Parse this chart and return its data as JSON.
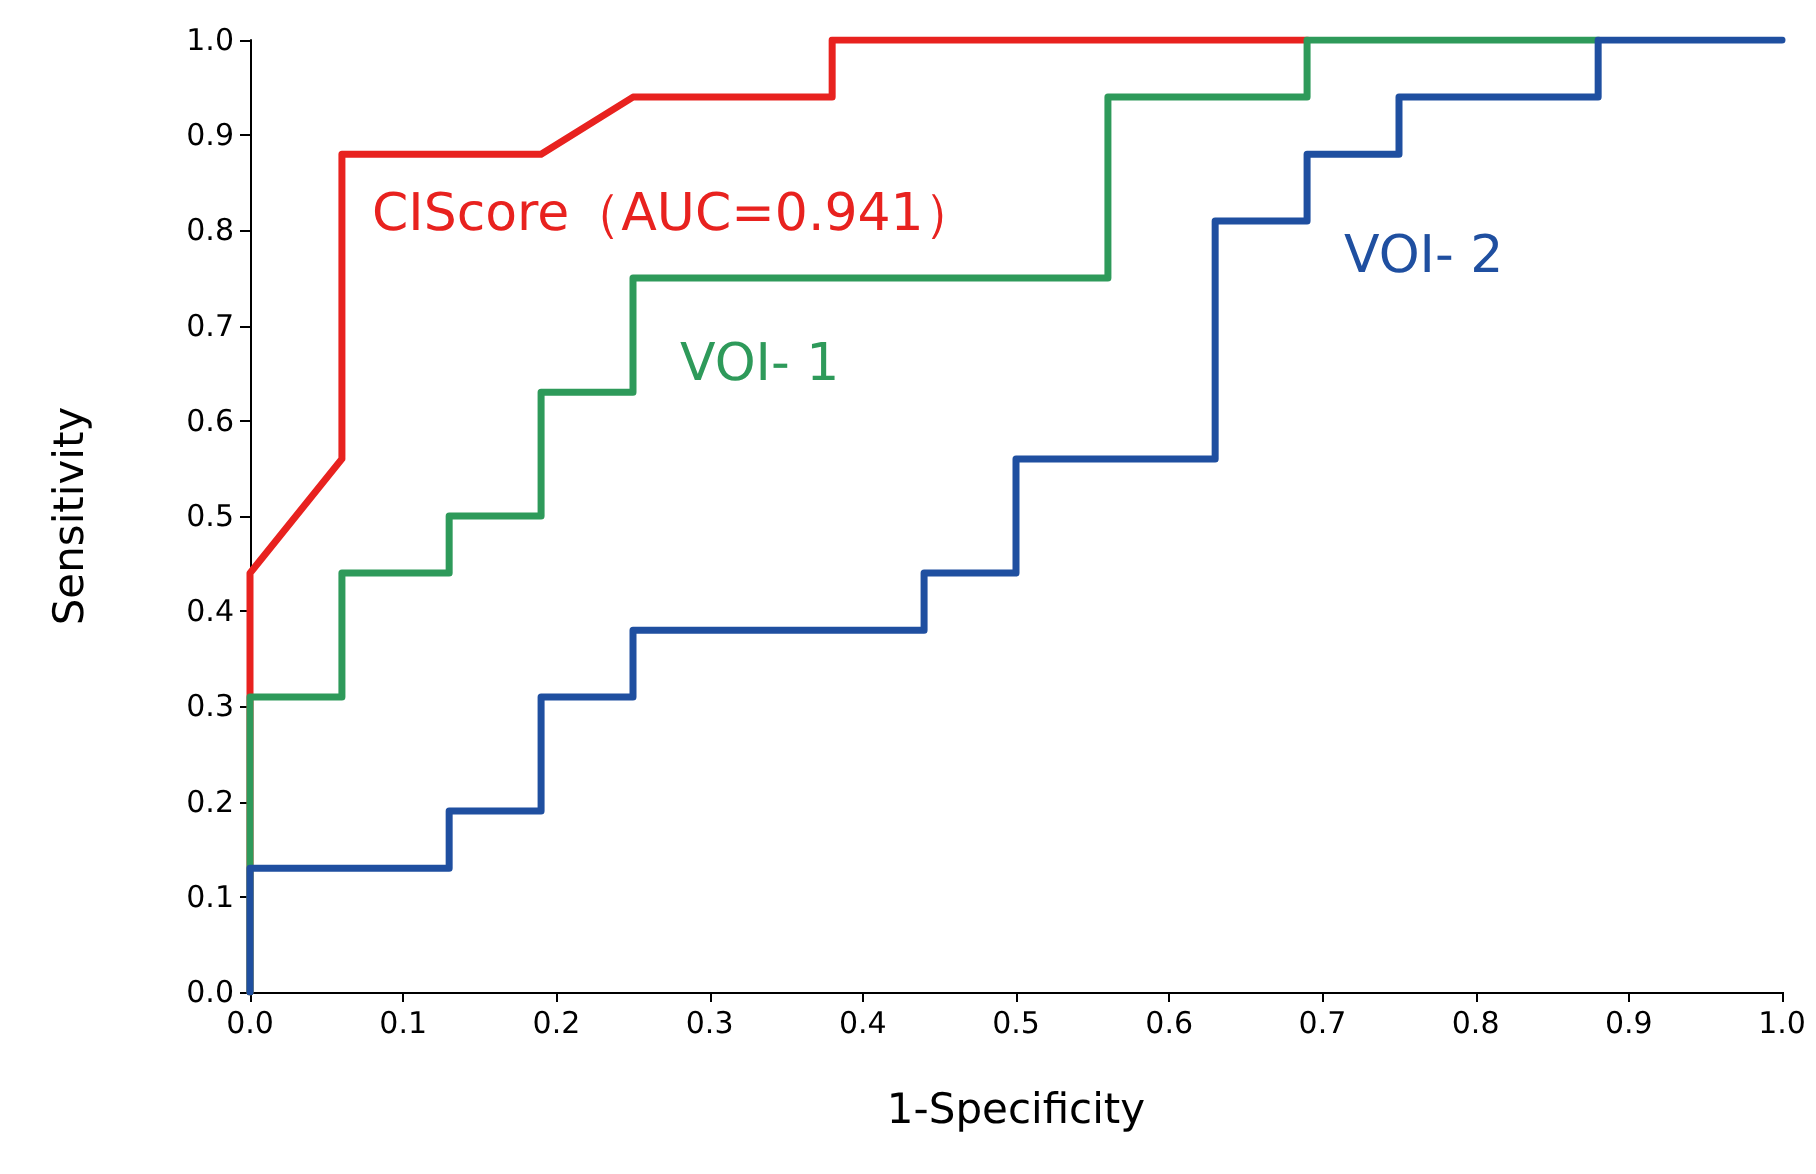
{
  "chart_data": {
    "type": "line",
    "xlabel": "1-Specificity",
    "ylabel": "Sensitivity",
    "xlim": [
      0,
      1
    ],
    "ylim": [
      0,
      1
    ],
    "xticks": [
      {
        "value": 0,
        "label": "0.0"
      },
      {
        "value": 0.1,
        "label": "0.1"
      },
      {
        "value": 0.2,
        "label": "0.2"
      },
      {
        "value": 0.3,
        "label": "0.3"
      },
      {
        "value": 0.4,
        "label": "0.4"
      },
      {
        "value": 0.5,
        "label": "0.5"
      },
      {
        "value": 0.6,
        "label": "0.6"
      },
      {
        "value": 0.7,
        "label": "0.7"
      },
      {
        "value": 0.8,
        "label": "0.8"
      },
      {
        "value": 0.9,
        "label": "0.9"
      },
      {
        "value": 1,
        "label": "1.0"
      }
    ],
    "yticks": [
      {
        "value": 0,
        "label": "0.0"
      },
      {
        "value": 0.1,
        "label": "0.1"
      },
      {
        "value": 0.2,
        "label": "0.2"
      },
      {
        "value": 0.3,
        "label": "0.3"
      },
      {
        "value": 0.4,
        "label": "0.4"
      },
      {
        "value": 0.5,
        "label": "0.5"
      },
      {
        "value": 0.6,
        "label": "0.6"
      },
      {
        "value": 0.7,
        "label": "0.7"
      },
      {
        "value": 0.8,
        "label": "0.8"
      },
      {
        "value": 0.9,
        "label": "0.9"
      },
      {
        "value": 1,
        "label": "1.0"
      }
    ],
    "grid": false,
    "marker": "none",
    "line_style": "solid",
    "series": [
      {
        "color": "#e8221f",
        "x": [
          0,
          0,
          0.06,
          0.06,
          0.19,
          0.25,
          0.38,
          0.38,
          0.69
        ],
        "values": [
          0,
          0.44,
          0.56,
          0.88,
          0.88,
          0.94,
          0.94,
          1,
          1
        ]
      },
      {
        "color": "#2e9a5a",
        "x": [
          0,
          0,
          0.06,
          0.06,
          0.13,
          0.13,
          0.19,
          0.19,
          0.25,
          0.25,
          0.56,
          0.56,
          0.69,
          0.69,
          0.88
        ],
        "values": [
          0,
          0.31,
          0.31,
          0.44,
          0.44,
          0.5,
          0.5,
          0.63,
          0.63,
          0.75,
          0.75,
          0.94,
          0.94,
          1,
          1
        ]
      },
      {
        "color": "#1f4fa0",
        "x": [
          0,
          0,
          0.13,
          0.13,
          0.19,
          0.19,
          0.25,
          0.25,
          0.44,
          0.44,
          0.5,
          0.5,
          0.63,
          0.63,
          0.69,
          0.69,
          0.75,
          0.75,
          0.88,
          0.88,
          1
        ],
        "values": [
          0,
          0.13,
          0.13,
          0.19,
          0.19,
          0.31,
          0.31,
          0.38,
          0.38,
          0.44,
          0.44,
          0.56,
          0.56,
          0.81,
          0.81,
          0.88,
          0.88,
          0.94,
          0.94,
          1,
          1
        ]
      }
    ],
    "annotations": [
      "CIScore（AUC=0.941）",
      "VOI- 1",
      "VOI- 2"
    ]
  }
}
